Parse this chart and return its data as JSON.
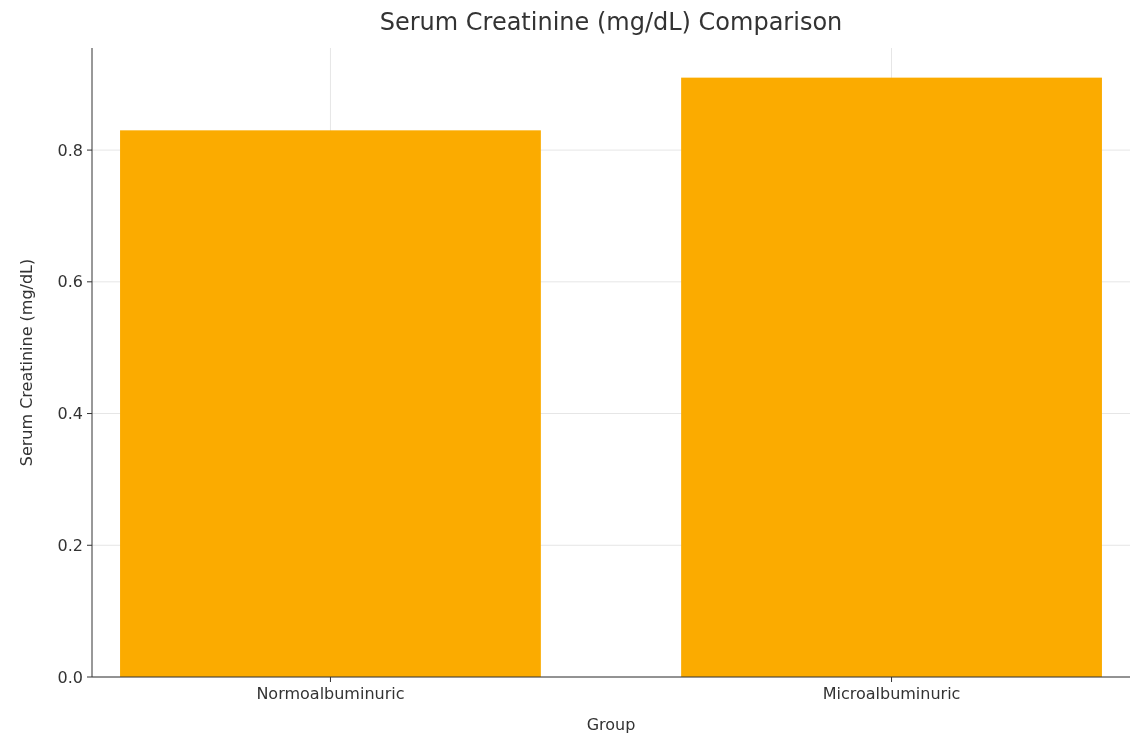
{
  "chart_data": {
    "type": "bar",
    "title": "Serum Creatinine (mg/dL) Comparison",
    "xlabel": "Group",
    "ylabel": "Serum Creatinine (mg/dL)",
    "categories": [
      "Normoalbuminuric",
      "Microalbuminuric"
    ],
    "values": [
      0.83,
      0.91
    ],
    "color": "#fbab00",
    "ylim": [
      0,
      0.955
    ],
    "yticks": [
      {
        "value": 0,
        "label": "0.0"
      },
      {
        "value": 0.2,
        "label": "0.2"
      },
      {
        "value": 0.4,
        "label": "0.4"
      },
      {
        "value": 0.6,
        "label": "0.6"
      },
      {
        "value": 0.8,
        "label": "0.8"
      }
    ],
    "grid": true
  }
}
